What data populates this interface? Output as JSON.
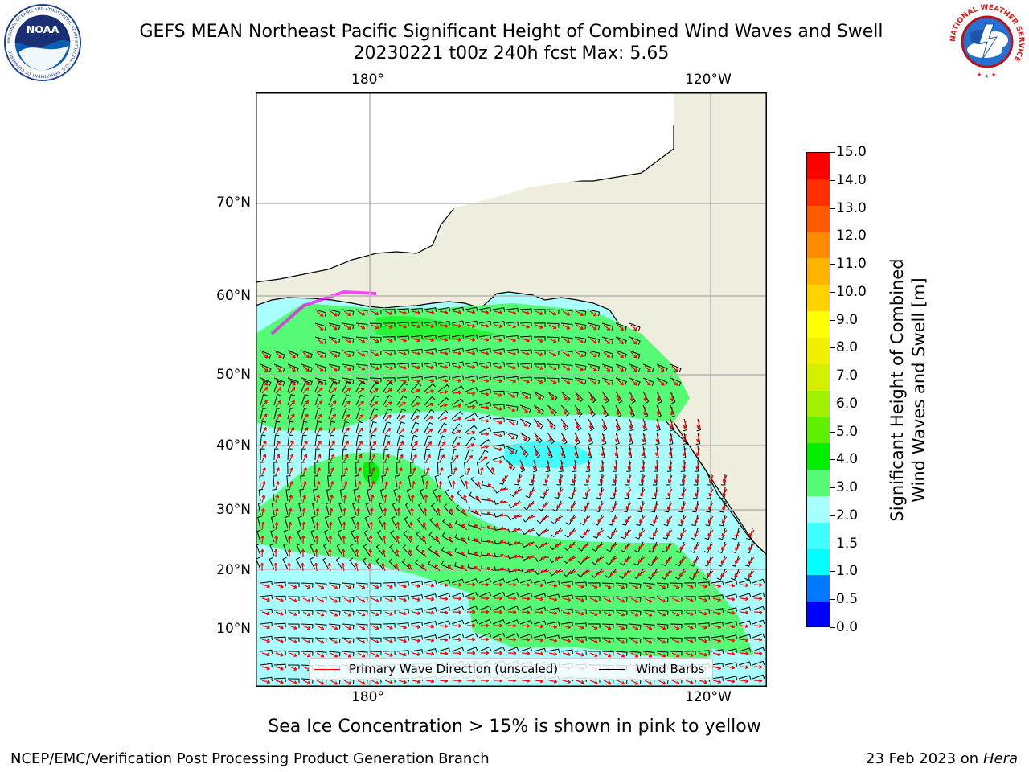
{
  "title": {
    "line1": "GEFS MEAN Northeast Pacific Significant Height of Combined Wind Waves and Swell",
    "line2": "20230221 t00z 240h fcst   Max: 5.65"
  },
  "logos": {
    "noaa": {
      "text": "NOAA",
      "ring_text": "NATIONAL OCEANIC AND ATMOSPHERIC ADMINISTRATION · U.S. DEPARTMENT OF COMMERCE"
    },
    "nws": {
      "ring_text": "NATIONAL WEATHER SERVICE"
    }
  },
  "map": {
    "lon_ticks_top": [
      "180°",
      "120°W"
    ],
    "lon_ticks_bottom": [
      "180°",
      "120°W"
    ],
    "lat_ticks": [
      "70°N",
      "60°N",
      "50°N",
      "40°N",
      "30°N",
      "20°N",
      "10°N"
    ],
    "legend": {
      "wave_direction": "Primary Wave Direction (unscaled)",
      "wind_barbs": "Wind Barbs"
    },
    "colors": {
      "land": "#efedde",
      "ocean_2_3": "#a8fffe",
      "ocean_3_4": "#55fa75",
      "ocean_4_5": "#00f000",
      "wave_arrow": "#ff0000",
      "barb": "#000000",
      "grid": "#b4b4b4"
    }
  },
  "colorbar": {
    "ticks": [
      "15.0",
      "14.0",
      "13.0",
      "12.0",
      "11.0",
      "10.0",
      "9.0",
      "8.0",
      "7.0",
      "6.0",
      "5.0",
      "4.0",
      "3.0",
      "2.0",
      "1.5",
      "1.0",
      "0.5",
      "0.0"
    ],
    "colors_bottom_to_top": [
      "#0000ff",
      "#0078ff",
      "#00ffff",
      "#40ffff",
      "#a8fffe",
      "#55fa75",
      "#00f000",
      "#5ff000",
      "#a0f000",
      "#d2f000",
      "#f0f000",
      "#ffff00",
      "#ffd200",
      "#ffb400",
      "#ff8c00",
      "#ff5a00",
      "#ff2d00",
      "#ff0000"
    ],
    "label_line1": "Significant Height of Combined",
    "label_line2": "Wind Waves and Swell [m]"
  },
  "sea_ice_note": "Sea Ice Concentration > 15% is shown in pink to yellow",
  "footer": {
    "left": "NCEP/EMC/Verification Post Processing Product Generation Branch",
    "right_date": "23 Feb 2023 on",
    "right_machine": "Hera"
  }
}
